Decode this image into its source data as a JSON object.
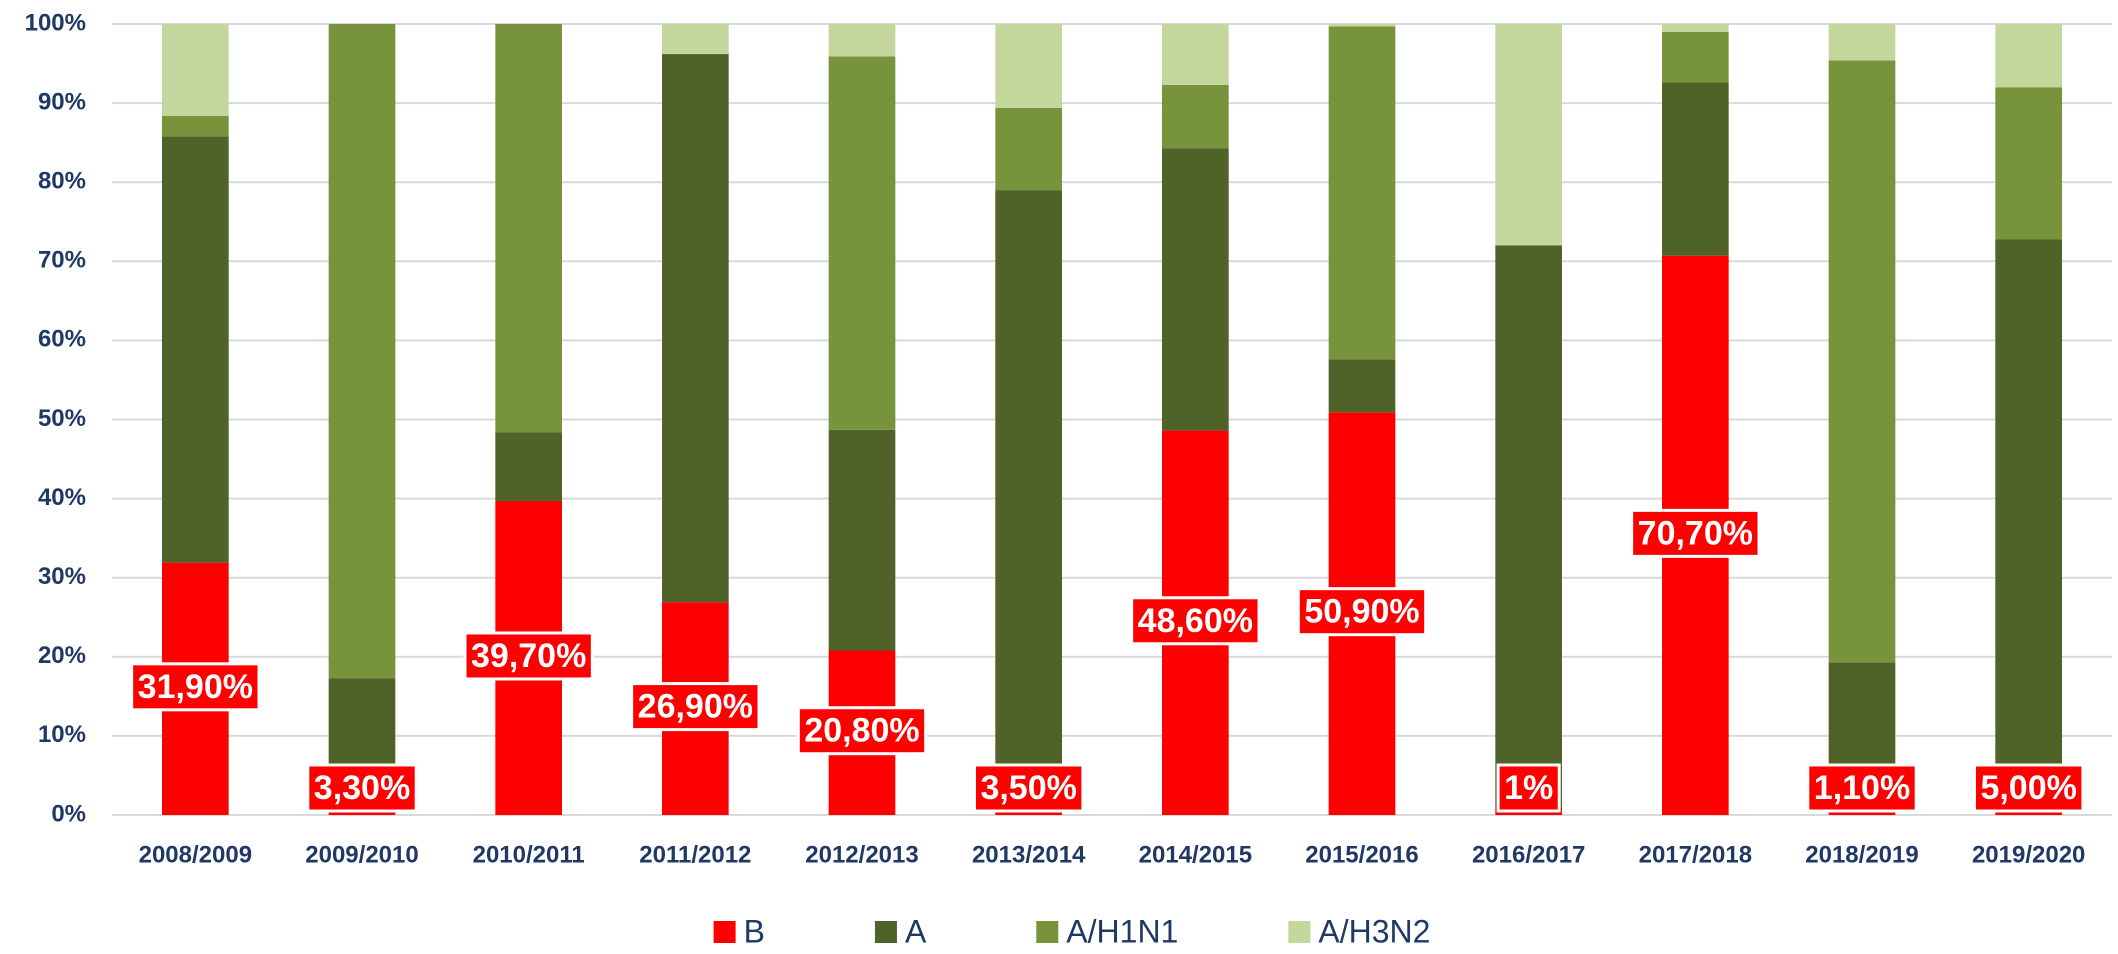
{
  "chart_data": {
    "type": "stacked_bar",
    "categories": [
      "2008/2009",
      "2009/2010",
      "2010/2011",
      "2011/2012",
      "2012/2013",
      "2013/2014",
      "2014/2015",
      "2015/2016",
      "2016/2017",
      "2017/2018",
      "2018/2019",
      "2019/2020"
    ],
    "series": [
      {
        "name": "B",
        "color": "#ff0000",
        "values": [
          31.9,
          3.3,
          39.7,
          26.9,
          20.8,
          3.5,
          48.6,
          50.9,
          1,
          70.7,
          1.1,
          5.0
        ],
        "value_labels": [
          "31,90%",
          "3,30%",
          "39,70%",
          "26,90%",
          "20,80%",
          "3,50%",
          "48,60%",
          "50,90%",
          "1%",
          "70,70%",
          "1,10%",
          "5,00%"
        ]
      },
      {
        "name": "A",
        "color": "#4f6228",
        "values": [
          53.9,
          14.0,
          8.7,
          69.3,
          27.9,
          75.5,
          35.7,
          6.7,
          71.0,
          21.9,
          18.2,
          67.8
        ]
      },
      {
        "name": "A/H1N1",
        "color": "#77933c",
        "values": [
          2.6,
          82.7,
          51.6,
          0,
          47.2,
          10.4,
          8.0,
          42.1,
          0,
          6.4,
          76.1,
          19.2
        ]
      },
      {
        "name": "A/H3N2",
        "color": "#c3d69b",
        "values": [
          11.6,
          0,
          0,
          3.8,
          4.1,
          10.6,
          7.7,
          0.3,
          28.0,
          1.0,
          4.6,
          8.0
        ]
      }
    ],
    "ylim": [
      0,
      100
    ],
    "yticks": [
      {
        "value": 0,
        "label": "0%"
      },
      {
        "value": 10,
        "label": "10%"
      },
      {
        "value": 20,
        "label": "20%"
      },
      {
        "value": 30,
        "label": "30%"
      },
      {
        "value": 40,
        "label": "40%"
      },
      {
        "value": 50,
        "label": "50%"
      },
      {
        "value": 60,
        "label": "60%"
      },
      {
        "value": 70,
        "label": "70%"
      },
      {
        "value": 80,
        "label": "80%"
      },
      {
        "value": 90,
        "label": "90%"
      },
      {
        "value": 100,
        "label": "100%"
      }
    ],
    "grid": true,
    "legend": "bottom"
  }
}
